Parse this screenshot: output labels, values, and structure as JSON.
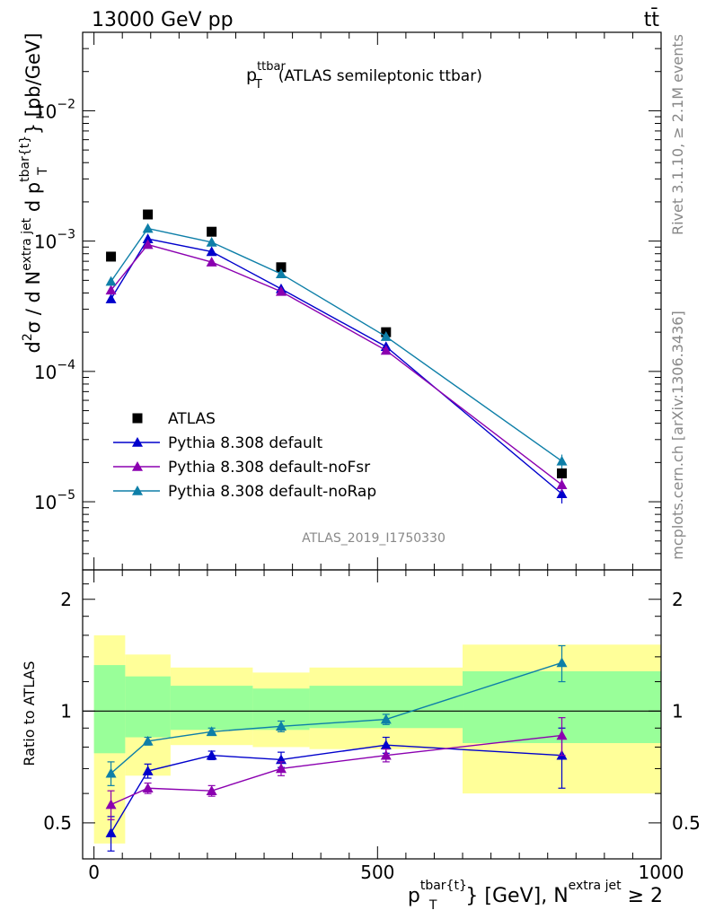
{
  "header": {
    "left": "13000 GeV pp",
    "right": "tt̄"
  },
  "side_texts": {
    "rivet": "Rivet 3.1.10, ≥ 2.1M events",
    "mcplots": "mcplots.cern.ch [arXiv:1306.3436]"
  },
  "analysis_id": "ATLAS_2019_I1750330",
  "chart_data": [
    {
      "type": "scatter",
      "title": "p_T^ttbar (ATLAS semileptonic ttbar)",
      "ylabel": "d²σ / d N^{extra jet} d p_T^{tbar{t}} [pb/GeV]",
      "xlim": [
        -20,
        1000
      ],
      "ylim": [
        3e-06,
        0.04
      ],
      "yscale": "log",
      "yticks": [
        {
          "v": 1e-05,
          "base": "10",
          "exp": "−5"
        },
        {
          "v": 0.0001,
          "base": "10",
          "exp": "−4"
        },
        {
          "v": 0.001,
          "base": "10",
          "exp": "−3"
        },
        {
          "v": 0.01,
          "base": "10",
          "exp": "−2"
        }
      ],
      "legend_position": "bottom-left",
      "x": [
        30,
        95,
        207.5,
        330,
        515,
        825
      ],
      "series": [
        {
          "name": "ATLAS",
          "color": "#000000",
          "marker": "square",
          "values": [
            0.00076,
            0.0016,
            0.00118,
            0.00063,
            0.0002,
            1.65e-05
          ]
        },
        {
          "name": "Pythia 8.308 default",
          "color": "#0000cc",
          "marker": "triangle",
          "values": [
            0.00036,
            0.00104,
            0.00083,
            0.00043,
            0.000155,
            1.15e-05
          ],
          "err": [
            1e-05,
            2e-05,
            2e-05,
            1e-05,
            5e-06,
            1.8e-06
          ]
        },
        {
          "name": "Pythia 8.308 default-noFsr",
          "color": "#8b00b0",
          "marker": "triangle",
          "values": [
            0.00042,
            0.00094,
            0.00069,
            0.00041,
            0.000145,
            1.35e-05
          ],
          "err": [
            1e-05,
            2e-05,
            2e-05,
            1e-05,
            5e-06,
            1.6e-06
          ]
        },
        {
          "name": "Pythia 8.308 default-noRap",
          "color": "#0e7fa8",
          "marker": "triangle",
          "values": [
            0.00049,
            0.00125,
            0.00098,
            0.00056,
            0.000185,
            2.05e-05
          ],
          "err": [
            1e-05,
            2e-05,
            2e-05,
            1e-05,
            6e-06,
            2.5e-06
          ]
        }
      ]
    },
    {
      "type": "scatter",
      "ylabel": "Ratio to ATLAS",
      "xlabel": "p_T^{tbar{t}} [GeV], N^{extra jet} ≥ 2",
      "xlim": [
        -20,
        1000
      ],
      "ylim": [
        0.4,
        2.4
      ],
      "yscale": "log",
      "yticks": [
        0.5,
        1,
        2
      ],
      "xticks": [
        0,
        500,
        1000
      ],
      "reference_line": 1,
      "bands": [
        {
          "x0": 0,
          "x1": 55,
          "green": [
            0.77,
            1.33
          ],
          "yellow": [
            0.44,
            1.6
          ]
        },
        {
          "x0": 55,
          "x1": 135,
          "green": [
            0.85,
            1.24
          ],
          "yellow": [
            0.67,
            1.42
          ]
        },
        {
          "x0": 135,
          "x1": 280,
          "green": [
            0.89,
            1.17
          ],
          "yellow": [
            0.81,
            1.31
          ]
        },
        {
          "x0": 280,
          "x1": 380,
          "green": [
            0.89,
            1.15
          ],
          "yellow": [
            0.8,
            1.27
          ]
        },
        {
          "x0": 380,
          "x1": 650,
          "green": [
            0.9,
            1.17
          ],
          "yellow": [
            0.79,
            1.31
          ]
        },
        {
          "x0": 650,
          "x1": 1000,
          "green": [
            0.82,
            1.28
          ],
          "yellow": [
            0.6,
            1.51
          ]
        }
      ],
      "x": [
        30,
        95,
        207.5,
        330,
        515,
        825
      ],
      "series": [
        {
          "name": "Pythia 8.308 default",
          "color": "#0000cc",
          "values": [
            0.47,
            0.69,
            0.76,
            0.74,
            0.81,
            0.76
          ],
          "err": [
            0.05,
            0.03,
            0.02,
            0.035,
            0.04,
            0.14
          ]
        },
        {
          "name": "Pythia 8.308 default-noFsr",
          "color": "#8b00b0",
          "values": [
            0.56,
            0.62,
            0.61,
            0.7,
            0.76,
            0.86
          ],
          "err": [
            0.05,
            0.02,
            0.02,
            0.03,
            0.03,
            0.1
          ]
        },
        {
          "name": "Pythia 8.308 default-noRap",
          "color": "#0e7fa8",
          "values": [
            0.68,
            0.83,
            0.88,
            0.91,
            0.95,
            1.35
          ],
          "err": [
            0.05,
            0.02,
            0.02,
            0.03,
            0.03,
            0.15
          ]
        }
      ]
    }
  ]
}
